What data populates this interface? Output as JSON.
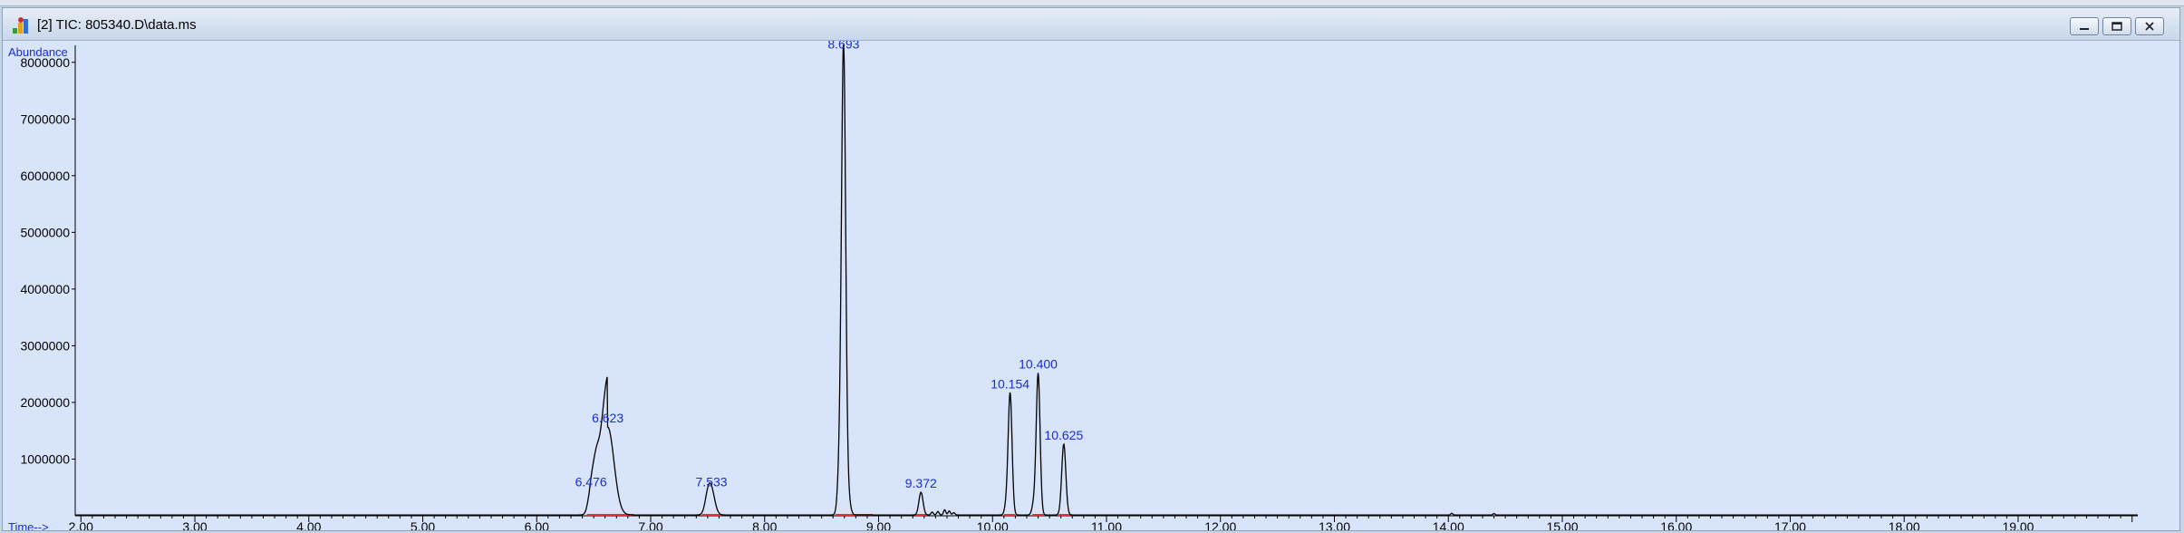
{
  "window": {
    "title": "[2] TIC: 805340.D\\data.ms",
    "buttons": [
      "minimize",
      "restore",
      "close"
    ]
  },
  "colors": {
    "background": "#d7e4fa",
    "trace": "#000000",
    "label": "#1a2fd0",
    "baseline": "#e03030"
  },
  "chart_data": {
    "type": "line",
    "ylabel": "Abundance",
    "xlabel": "Time-->",
    "xlim": [
      1.95,
      20.05
    ],
    "ylim": [
      0,
      8300000
    ],
    "xticks": [
      "2.00",
      "3.00",
      "4.00",
      "5.00",
      "6.00",
      "7.00",
      "8.00",
      "9.00",
      "10.00",
      "11.00",
      "12.00",
      "13.00",
      "14.00",
      "15.00",
      "16.00",
      "17.00",
      "18.00",
      "19.00"
    ],
    "yticks": [
      "1000000",
      "2000000",
      "3000000",
      "4000000",
      "5000000",
      "6000000",
      "7000000",
      "8000000"
    ],
    "peaks": [
      {
        "label": "6.476",
        "rt": 6.476,
        "height": 420000,
        "width": 0.025
      },
      {
        "label": "6.623",
        "rt": 6.623,
        "height": 1550000,
        "width": 0.055
      },
      {
        "label": "7.533",
        "rt": 7.533,
        "height": 420000,
        "width": 0.03
      },
      {
        "label": "8.693",
        "rt": 8.693,
        "height": 8150000,
        "width": 0.018
      },
      {
        "label": "9.372",
        "rt": 9.372,
        "height": 400000,
        "width": 0.018
      },
      {
        "label": "10.154",
        "rt": 10.154,
        "height": 2150000,
        "width": 0.017
      },
      {
        "label": "10.400",
        "rt": 10.4,
        "height": 2500000,
        "width": 0.017
      },
      {
        "label": "10.625",
        "rt": 10.625,
        "height": 1250000,
        "width": 0.018
      }
    ],
    "minor_peaks": [
      {
        "rt": 6.52,
        "height": 480000,
        "width": 0.025
      },
      {
        "rt": 7.5,
        "height": 250000,
        "width": 0.025
      },
      {
        "rt": 8.66,
        "height": 900000,
        "width": 0.018
      },
      {
        "rt": 8.73,
        "height": 350000,
        "width": 0.02
      },
      {
        "rt": 9.47,
        "height": 50000,
        "width": 0.01
      },
      {
        "rt": 9.52,
        "height": 60000,
        "width": 0.01
      },
      {
        "rt": 9.58,
        "height": 90000,
        "width": 0.01
      },
      {
        "rt": 9.62,
        "height": 70000,
        "width": 0.01
      },
      {
        "rt": 9.66,
        "height": 40000,
        "width": 0.01
      },
      {
        "rt": 10.12,
        "height": 150000,
        "width": 0.015
      },
      {
        "rt": 10.36,
        "height": 180000,
        "width": 0.015
      },
      {
        "rt": 14.03,
        "height": 30000,
        "width": 0.008
      },
      {
        "rt": 14.4,
        "height": 25000,
        "width": 0.008
      }
    ],
    "integration_baselines": [
      [
        6.44,
        6.85
      ],
      [
        7.45,
        7.62
      ],
      [
        8.62,
        8.95
      ],
      [
        9.32,
        9.42
      ],
      [
        10.1,
        10.2
      ],
      [
        10.35,
        10.45
      ],
      [
        10.58,
        10.68
      ]
    ]
  }
}
